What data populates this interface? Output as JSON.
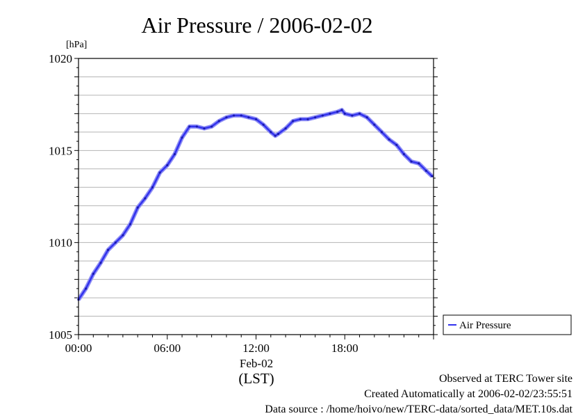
{
  "chart_data": {
    "type": "line",
    "title": "Air Pressure / 2006-02-02",
    "ylabel": "[hPa]",
    "xlabel": "(LST)",
    "x_center_label": "Feb-02",
    "x_ticks": [
      "00:00",
      "06:00",
      "12:00",
      "18:00"
    ],
    "y_ticks": [
      "1005",
      "1010",
      "1015",
      "1020"
    ],
    "ylim": [
      1005,
      1020
    ],
    "xlim_hours": [
      0,
      23.9
    ],
    "grid": true,
    "legend_position": "right",
    "series": [
      {
        "name": "Air Pressure",
        "color": "#3333ee",
        "x": [
          0.0,
          0.5,
          1.0,
          1.5,
          2.0,
          2.5,
          3.0,
          3.5,
          4.0,
          4.5,
          5.0,
          5.5,
          6.0,
          6.5,
          7.0,
          7.5,
          8.0,
          8.5,
          9.0,
          9.5,
          10.0,
          10.5,
          11.0,
          11.5,
          12.0,
          12.5,
          13.0,
          13.3,
          13.5,
          14.0,
          14.5,
          15.0,
          15.5,
          16.0,
          16.5,
          17.0,
          17.5,
          17.8,
          18.0,
          18.5,
          19.0,
          19.5,
          20.0,
          20.5,
          21.0,
          21.5,
          22.0,
          22.5,
          23.0,
          23.5,
          23.9
        ],
        "values": [
          1006.9,
          1007.5,
          1008.3,
          1008.9,
          1009.6,
          1010.0,
          1010.4,
          1011.0,
          1011.9,
          1012.4,
          1013.0,
          1013.8,
          1014.2,
          1014.8,
          1015.7,
          1016.3,
          1016.3,
          1016.2,
          1016.3,
          1016.6,
          1016.8,
          1016.9,
          1016.9,
          1016.8,
          1016.7,
          1016.4,
          1016.0,
          1015.8,
          1015.9,
          1016.2,
          1016.6,
          1016.7,
          1016.7,
          1016.8,
          1016.9,
          1017.0,
          1017.1,
          1017.2,
          1017.0,
          1016.9,
          1017.0,
          1016.8,
          1016.4,
          1016.0,
          1015.6,
          1015.3,
          1014.8,
          1014.4,
          1014.3,
          1013.9,
          1013.6
        ]
      }
    ]
  },
  "footer": {
    "line1": "Observed at TERC Tower site",
    "line2": "Created Automatically at 2006-02-02/23:55:51",
    "line3": "Data source : /home/hoivo/new/TERC-data/sorted_data/MET.10s.dat"
  }
}
